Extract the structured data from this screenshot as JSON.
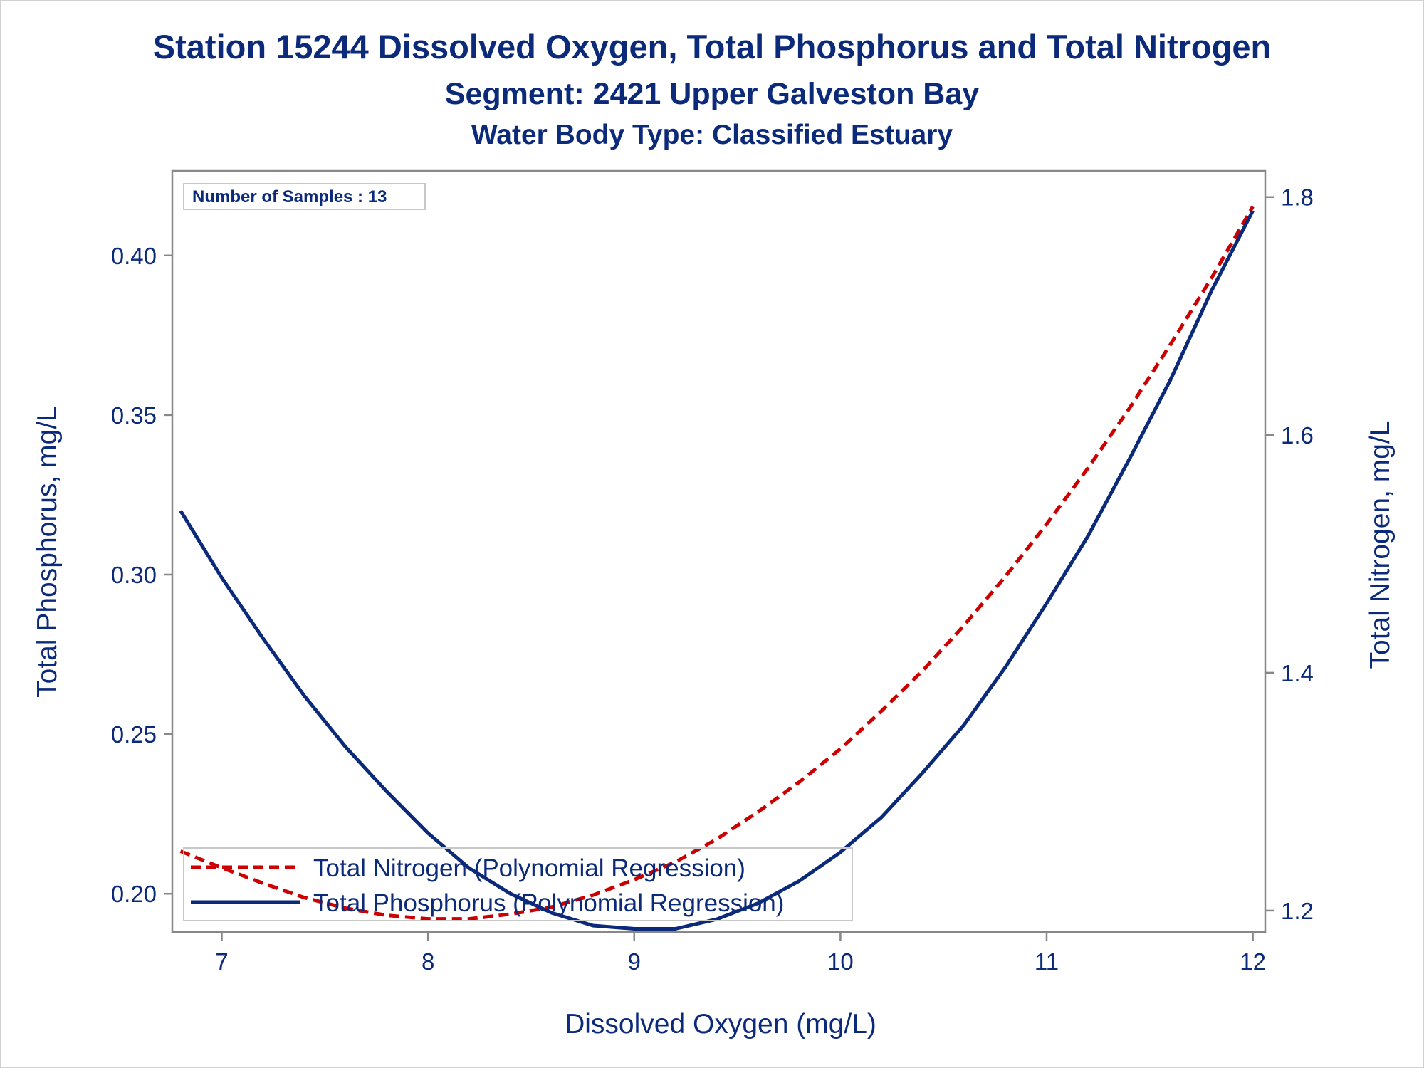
{
  "titles": {
    "line1": "Station 15244  Dissolved Oxygen, Total Phosphorus and Total Nitrogen",
    "line2": "Segment: 2421  Upper Galveston Bay",
    "line3": "Water Body Type: Classified Estuary"
  },
  "annotation": "Number of Samples : 13",
  "colors": {
    "text": "#0b2a7a",
    "phosphorus_line": "#0b2a7a",
    "nitrogen_line": "#cc0000",
    "axis": "#888888"
  },
  "chart_data": {
    "type": "line",
    "xlabel": "Dissolved Oxygen (mg/L)",
    "ylabel": "Total Phosphorus, mg/L",
    "y2label": "Total Nitrogen, mg/L",
    "xlim": [
      6.76,
      12.06
    ],
    "ylim": [
      0.188,
      0.4265
    ],
    "y2lim": [
      1.182,
      1.822
    ],
    "x_ticks": [
      7,
      8,
      9,
      10,
      11,
      12
    ],
    "y_ticks": [
      0.2,
      0.25,
      0.3,
      0.35,
      0.4
    ],
    "y_tick_labels": [
      "0.20",
      "0.25",
      "0.30",
      "0.35",
      "0.40"
    ],
    "y2_ticks": [
      1.2,
      1.4,
      1.6,
      1.8
    ],
    "y2_tick_labels": [
      "1.2",
      "1.4",
      "1.6",
      "1.8"
    ],
    "grid": false,
    "legend_position": "bottom-left",
    "series": [
      {
        "name": "Total Nitrogen (Polynomial Regression)",
        "axis": "right",
        "style": "dashed",
        "x": [
          6.8,
          7.0,
          7.2,
          7.4,
          7.6,
          7.8,
          8.0,
          8.2,
          8.4,
          8.6,
          8.8,
          9.0,
          9.2,
          9.4,
          9.6,
          9.8,
          10.0,
          10.2,
          10.4,
          10.6,
          10.8,
          11.0,
          11.2,
          11.4,
          11.6,
          11.8,
          12.0
        ],
        "y": [
          1.25,
          1.236,
          1.223,
          1.211,
          1.202,
          1.196,
          1.193,
          1.193,
          1.197,
          1.203,
          1.213,
          1.226,
          1.241,
          1.26,
          1.283,
          1.308,
          1.336,
          1.368,
          1.402,
          1.44,
          1.481,
          1.525,
          1.572,
          1.622,
          1.676,
          1.732,
          1.792
        ]
      },
      {
        "name": "Total Phosphorus (Polynomial Regression)",
        "axis": "left",
        "style": "solid",
        "x": [
          6.8,
          7.0,
          7.2,
          7.4,
          7.6,
          7.8,
          8.0,
          8.2,
          8.4,
          8.6,
          8.8,
          9.0,
          9.2,
          9.4,
          9.6,
          9.8,
          10.0,
          10.2,
          10.4,
          10.6,
          10.8,
          11.0,
          11.2,
          11.4,
          11.6,
          11.8,
          12.0
        ],
        "y": [
          0.32,
          0.299,
          0.28,
          0.262,
          0.246,
          0.232,
          0.219,
          0.208,
          0.2,
          0.194,
          0.19,
          0.189,
          0.189,
          0.192,
          0.197,
          0.204,
          0.213,
          0.224,
          0.238,
          0.253,
          0.271,
          0.291,
          0.312,
          0.336,
          0.361,
          0.389,
          0.414
        ]
      }
    ]
  }
}
